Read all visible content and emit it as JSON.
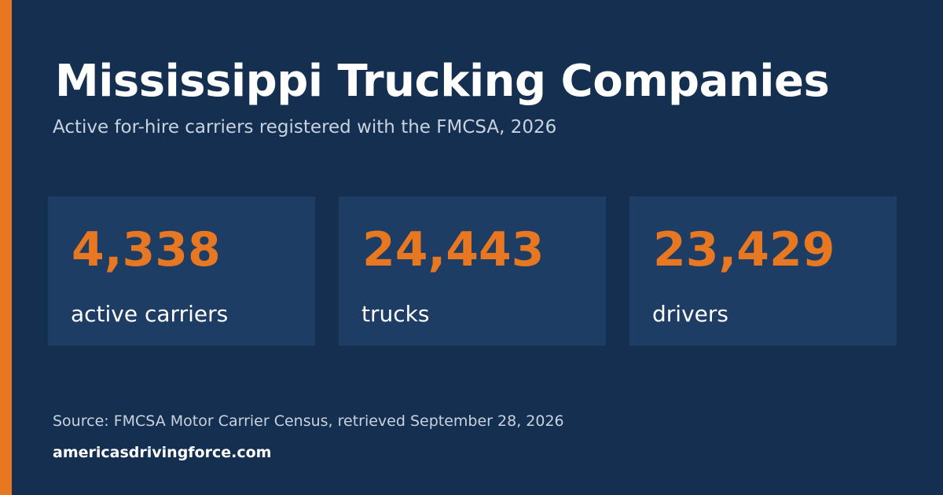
{
  "header": {
    "title": "Mississippi Trucking Companies",
    "subtitle": "Active for-hire carriers registered with the FMCSA, 2026"
  },
  "stats": [
    {
      "value": "4,338",
      "label": "active carriers"
    },
    {
      "value": "24,443",
      "label": "trucks"
    },
    {
      "value": "23,429",
      "label": "drivers"
    }
  ],
  "footer": {
    "source": "Source: FMCSA Motor Carrier Census, retrieved September 28, 2026",
    "site": "americasdrivingforce.com"
  },
  "colors": {
    "background": "#142f50",
    "stat_box": "#1d3d64",
    "accent": "#e87722",
    "text_primary": "#ffffff",
    "text_muted": "#c9d3df"
  }
}
